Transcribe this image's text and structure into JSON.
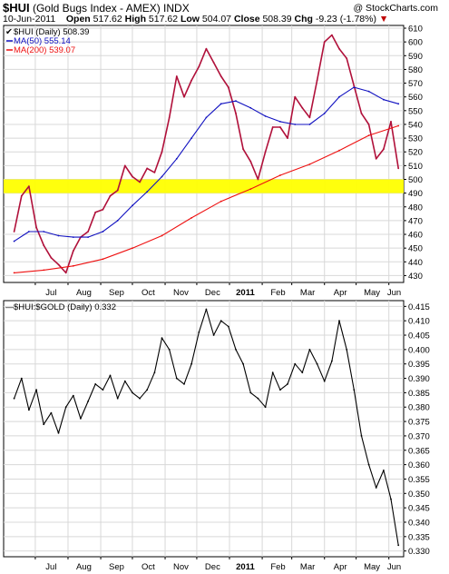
{
  "header": {
    "symbol": "$HUI",
    "title_rest": "(Gold Bugs Index - AMEX)",
    "exchange": "INDX",
    "date": "10-Jun-2011",
    "open_label": "Open",
    "open": "517.62",
    "high_label": "High",
    "high": "517.62",
    "low_label": "Low",
    "low": "504.07",
    "close_label": "Close",
    "close": "508.39",
    "chg_label": "Chg",
    "chg": "-9.23 (-1.78%)",
    "watermark": "@ StockCharts.com"
  },
  "colors": {
    "price": "#b0103a",
    "ma50": "#1010c0",
    "ma200": "#ee1010",
    "band": "#ffff00",
    "ratio": "#000000",
    "grid": "#d8d8d8",
    "chg": "#c00000"
  },
  "chart_data": [
    {
      "type": "line",
      "panel": "upper",
      "ylim": [
        425,
        612
      ],
      "yticks": [
        430,
        440,
        450,
        460,
        470,
        480,
        490,
        500,
        510,
        520,
        530,
        540,
        550,
        560,
        570,
        580,
        590,
        600,
        610
      ],
      "x_labels": [
        "Jul",
        "Aug",
        "Sep",
        "Oct",
        "Nov",
        "Dec",
        "2011",
        "Feb",
        "Mar",
        "Apr",
        "May",
        "Jun"
      ],
      "highlight_band": [
        490,
        500
      ],
      "legend": [
        {
          "label": "$HUI (Daily) 508.39"
        },
        {
          "label": "MA(50) 555.14"
        },
        {
          "label": "MA(200) 539.07"
        }
      ],
      "series": [
        {
          "name": "$HUI (Daily)",
          "x": [
            "2010-06-11",
            "2010-06-18",
            "2010-06-25",
            "2010-07-02",
            "2010-07-09",
            "2010-07-16",
            "2010-07-23",
            "2010-07-30",
            "2010-08-06",
            "2010-08-13",
            "2010-08-20",
            "2010-08-27",
            "2010-09-03",
            "2010-09-10",
            "2010-09-17",
            "2010-09-24",
            "2010-10-01",
            "2010-10-08",
            "2010-10-15",
            "2010-10-22",
            "2010-10-29",
            "2010-11-05",
            "2010-11-12",
            "2010-11-19",
            "2010-11-26",
            "2010-12-03",
            "2010-12-10",
            "2010-12-17",
            "2010-12-24",
            "2010-12-31",
            "2011-01-07",
            "2011-01-14",
            "2011-01-21",
            "2011-01-28",
            "2011-02-04",
            "2011-02-11",
            "2011-02-18",
            "2011-02-25",
            "2011-03-04",
            "2011-03-11",
            "2011-03-18",
            "2011-03-25",
            "2011-04-01",
            "2011-04-08",
            "2011-04-15",
            "2011-04-22",
            "2011-04-29",
            "2011-05-06",
            "2011-05-13",
            "2011-05-20",
            "2011-05-27",
            "2011-06-03",
            "2011-06-10"
          ],
          "values": [
            462,
            488,
            495,
            465,
            452,
            443,
            438,
            432,
            448,
            458,
            462,
            476,
            478,
            488,
            492,
            510,
            502,
            498,
            508,
            505,
            520,
            545,
            575,
            560,
            572,
            582,
            595,
            585,
            575,
            567,
            548,
            522,
            513,
            500,
            520,
            538,
            538,
            530,
            560,
            552,
            545,
            572,
            600,
            605,
            595,
            588,
            568,
            548,
            540,
            515,
            522,
            542,
            508
          ]
        },
        {
          "name": "MA(50)",
          "x": [
            "2010-06-11",
            "2010-06-25",
            "2010-07-09",
            "2010-07-23",
            "2010-08-06",
            "2010-08-20",
            "2010-09-03",
            "2010-09-17",
            "2010-10-01",
            "2010-10-15",
            "2010-10-29",
            "2010-11-12",
            "2010-11-26",
            "2010-12-10",
            "2010-12-24",
            "2011-01-07",
            "2011-01-21",
            "2011-02-04",
            "2011-02-18",
            "2011-03-04",
            "2011-03-18",
            "2011-04-01",
            "2011-04-15",
            "2011-04-29",
            "2011-05-13",
            "2011-05-27",
            "2011-06-10"
          ],
          "values": [
            455,
            462,
            462,
            459,
            458,
            458,
            462,
            470,
            481,
            491,
            502,
            515,
            530,
            545,
            555,
            557,
            552,
            546,
            542,
            540,
            540,
            548,
            560,
            567,
            564,
            558,
            555
          ]
        },
        {
          "name": "MA(200)",
          "x": [
            "2010-06-11",
            "2010-07-09",
            "2010-08-06",
            "2010-09-03",
            "2010-10-01",
            "2010-10-29",
            "2010-11-26",
            "2010-12-24",
            "2011-01-21",
            "2011-02-18",
            "2011-03-18",
            "2011-04-15",
            "2011-05-13",
            "2011-06-10"
          ],
          "values": [
            432,
            434,
            437,
            442,
            450,
            459,
            472,
            484,
            493,
            503,
            511,
            521,
            532,
            539
          ]
        }
      ]
    },
    {
      "type": "line",
      "panel": "lower",
      "ylim": [
        0.328,
        0.417
      ],
      "yticks": [
        0.33,
        0.335,
        0.34,
        0.345,
        0.35,
        0.355,
        0.36,
        0.365,
        0.37,
        0.375,
        0.38,
        0.385,
        0.39,
        0.395,
        0.4,
        0.405,
        0.41,
        0.415
      ],
      "ytick_labels": [
        "0.330",
        "0.335",
        "0.340",
        "0.345",
        "0.350",
        "0.355",
        "0.360",
        "0.365",
        "0.370",
        "0.375",
        "0.380",
        "0.385",
        "0.390",
        "0.395",
        "0.400",
        "0.405",
        "0.410",
        "0.415"
      ],
      "x_labels": [
        "Jul",
        "Aug",
        "Sep",
        "Oct",
        "Nov",
        "Dec",
        "2011",
        "Feb",
        "Mar",
        "Apr",
        "May",
        "Jun"
      ],
      "legend": [
        {
          "label": "$HUI:$GOLD (Daily) 0.332"
        }
      ],
      "series": [
        {
          "name": "$HUI:$GOLD (Daily)",
          "x": [
            "2010-06-11",
            "2010-06-18",
            "2010-06-25",
            "2010-07-02",
            "2010-07-09",
            "2010-07-16",
            "2010-07-23",
            "2010-07-30",
            "2010-08-06",
            "2010-08-13",
            "2010-08-20",
            "2010-08-27",
            "2010-09-03",
            "2010-09-10",
            "2010-09-17",
            "2010-09-24",
            "2010-10-01",
            "2010-10-08",
            "2010-10-15",
            "2010-10-22",
            "2010-10-29",
            "2010-11-05",
            "2010-11-12",
            "2010-11-19",
            "2010-11-26",
            "2010-12-03",
            "2010-12-10",
            "2010-12-17",
            "2010-12-24",
            "2010-12-31",
            "2011-01-07",
            "2011-01-14",
            "2011-01-21",
            "2011-01-28",
            "2011-02-04",
            "2011-02-11",
            "2011-02-18",
            "2011-02-25",
            "2011-03-04",
            "2011-03-11",
            "2011-03-18",
            "2011-03-25",
            "2011-04-01",
            "2011-04-08",
            "2011-04-15",
            "2011-04-22",
            "2011-04-29",
            "2011-05-06",
            "2011-05-13",
            "2011-05-20",
            "2011-05-27",
            "2011-06-03",
            "2011-06-10"
          ],
          "values": [
            0.383,
            0.39,
            0.379,
            0.386,
            0.374,
            0.378,
            0.371,
            0.38,
            0.384,
            0.376,
            0.382,
            0.388,
            0.386,
            0.391,
            0.383,
            0.389,
            0.385,
            0.383,
            0.386,
            0.392,
            0.404,
            0.4,
            0.39,
            0.388,
            0.395,
            0.406,
            0.414,
            0.405,
            0.41,
            0.408,
            0.4,
            0.395,
            0.385,
            0.383,
            0.38,
            0.392,
            0.386,
            0.388,
            0.395,
            0.392,
            0.4,
            0.395,
            0.389,
            0.396,
            0.41,
            0.4,
            0.386,
            0.37,
            0.36,
            0.352,
            0.358,
            0.348,
            0.332
          ]
        }
      ]
    }
  ]
}
